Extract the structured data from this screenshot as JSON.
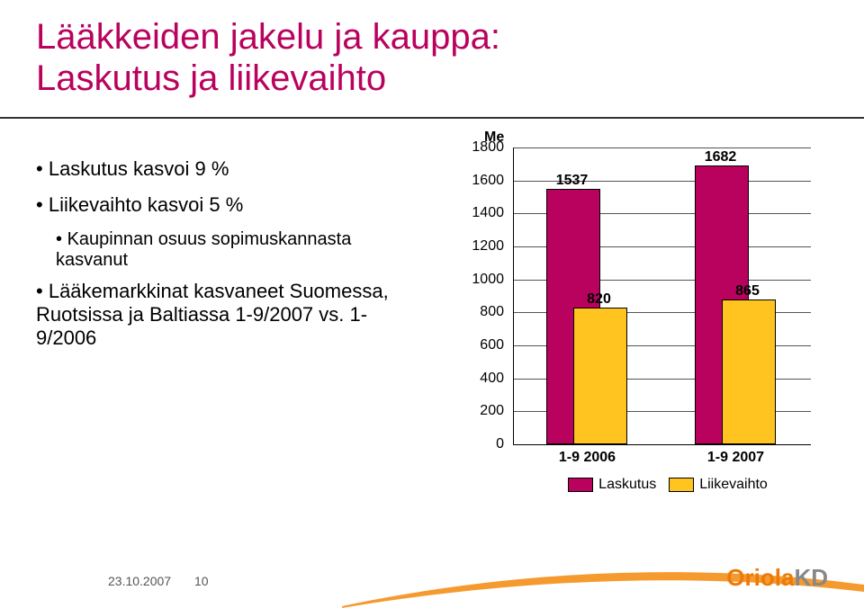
{
  "title_line1": "Lääkkeiden jakelu ja kauppa:",
  "title_line2": "Laskutus ja liikevaihto",
  "bullets": {
    "b1": "Laskutus kasvoi 9 %",
    "b2": "Liikevaihto kasvoi 5 %",
    "b2a": "Kaupinnan osuus sopimuskannasta kasvanut",
    "b3": "Lääkemarkkinat kasvaneet Suomessa, Ruotsissa ja Baltiassa 1-9/2007 vs. 1-9/2006"
  },
  "chart": {
    "type": "bar",
    "y_title": "Me",
    "ylim_min": 0,
    "ylim_max": 1800,
    "ytick_step": 200,
    "categories": [
      "1-9 2006",
      "1-9 2007"
    ],
    "series": [
      {
        "name": "Laskutus",
        "color": "#b9025e",
        "values": [
          1537,
          1682
        ]
      },
      {
        "name": "Liikevaihto",
        "color": "#ffc420",
        "values": [
          820,
          865
        ]
      }
    ],
    "grid_color": "#555555",
    "bar_border": "#000000",
    "label_fontsize": 16,
    "value_fontsize": 16
  },
  "footer": {
    "date": "23.10.2007",
    "page": "10"
  },
  "logo": {
    "name": "Oriola",
    "suffix": "KD",
    "color": "#ec7a08",
    "swoosh_color": "#f59a2f"
  }
}
